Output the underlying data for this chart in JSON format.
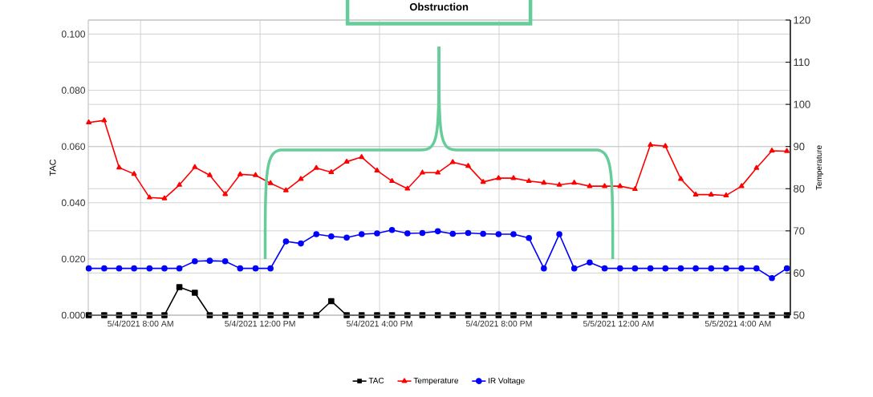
{
  "chart_data": {
    "type": "line",
    "x": [
      "2021-05-04T06:16",
      "2021-05-04T06:47",
      "2021-05-04T07:17",
      "2021-05-04T07:47",
      "2021-05-04T08:18",
      "2021-05-04T08:48",
      "2021-05-04T09:18",
      "2021-05-04T09:49",
      "2021-05-04T10:19",
      "2021-05-04T10:50",
      "2021-05-04T11:20",
      "2021-05-04T11:51",
      "2021-05-04T12:21",
      "2021-05-04T12:52",
      "2021-05-04T13:22",
      "2021-05-04T13:53",
      "2021-05-04T14:23",
      "2021-05-04T14:54",
      "2021-05-04T15:24",
      "2021-05-04T15:55",
      "2021-05-04T16:25",
      "2021-05-04T16:56",
      "2021-05-04T17:26",
      "2021-05-04T17:57",
      "2021-05-04T18:27",
      "2021-05-04T18:58",
      "2021-05-04T19:28",
      "2021-05-04T19:59",
      "2021-05-04T20:29",
      "2021-05-04T21:00",
      "2021-05-04T21:30",
      "2021-05-04T22:01",
      "2021-05-04T22:31",
      "2021-05-04T23:02",
      "2021-05-04T23:32",
      "2021-05-05T00:03",
      "2021-05-05T00:33",
      "2021-05-05T01:04",
      "2021-05-05T01:34",
      "2021-05-05T02:05",
      "2021-05-05T02:35",
      "2021-05-05T03:06",
      "2021-05-05T03:36",
      "2021-05-05T04:07",
      "2021-05-05T04:37",
      "2021-05-05T05:08",
      "2021-05-05T05:38"
    ],
    "series": [
      {
        "name": "TAC",
        "color": "#000000",
        "marker": "square",
        "values": [
          0,
          0,
          0,
          0,
          0,
          0,
          0.01,
          0.008,
          0,
          0,
          0,
          0,
          0,
          0,
          0,
          0,
          0.005,
          0,
          0,
          0,
          0,
          0,
          0,
          0,
          0,
          0,
          0,
          0,
          0,
          0,
          0,
          0,
          0,
          0,
          0,
          0,
          0,
          0,
          0,
          0,
          0,
          0,
          0,
          0,
          0,
          0,
          0
        ]
      },
      {
        "name": "Temperature",
        "color": "#ff0000",
        "marker": "triangle",
        "axis": "y2",
        "values": [
          95.7,
          96.2,
          85.0,
          83.5,
          77.9,
          77.7,
          80.9,
          85.1,
          83.2,
          78.7,
          83.4,
          83.2,
          81.3,
          79.6,
          82.3,
          84.9,
          83.9,
          86.4,
          87.5,
          84.3,
          81.8,
          80.0,
          83.8,
          83.8,
          86.3,
          85.4,
          81.6,
          82.5,
          82.5,
          81.8,
          81.4,
          80.9,
          81.4,
          80.6,
          80.6,
          80.6,
          79.9,
          90.4,
          90.1,
          82.3,
          78.6,
          78.6,
          78.4,
          80.6,
          84.9,
          89.0,
          88.9
        ]
      },
      {
        "name": "IR Voltage",
        "color": "#0000ff",
        "marker": "circle",
        "axis": "y2",
        "values": [
          61.1,
          61.1,
          61.1,
          61.1,
          61.1,
          61.1,
          61.1,
          62.8,
          62.9,
          62.8,
          61.1,
          61.1,
          61.1,
          67.5,
          67.0,
          69.2,
          68.7,
          68.4,
          69.2,
          69.4,
          70.2,
          69.4,
          69.5,
          69.9,
          69.3,
          69.5,
          69.3,
          69.2,
          69.2,
          68.3,
          61.1,
          69.2,
          61.1,
          62.5,
          61.1,
          61.1,
          61.1,
          61.1,
          61.1,
          61.1,
          61.1,
          61.1,
          61.1,
          61.1,
          61.1,
          58.8,
          61.1
        ]
      }
    ],
    "ylabel": "TAC",
    "y2label": "Temperature",
    "xlim": [
      "2021-05-04T06:15",
      "2021-05-05T05:45"
    ],
    "xticks": [
      {
        "value": "2021-05-04T08:00",
        "label": "5/4/2021 8:00 AM"
      },
      {
        "value": "2021-05-04T12:00",
        "label": "5/4/2021 12:00 PM"
      },
      {
        "value": "2021-05-04T16:00",
        "label": "5/4/2021 4:00 PM"
      },
      {
        "value": "2021-05-04T20:00",
        "label": "5/4/2021 8:00 PM"
      },
      {
        "value": "2021-05-05T00:00",
        "label": "5/5/2021 12:00 AM"
      },
      {
        "value": "2021-05-05T04:00",
        "label": "5/5/2021 4:00 AM"
      }
    ],
    "ylim": [
      0,
      0.105
    ],
    "yticks": [
      {
        "value": 0,
        "label": "0.000"
      },
      {
        "value": 0.02,
        "label": "0.020"
      },
      {
        "value": 0.04,
        "label": "0.040"
      },
      {
        "value": 0.06,
        "label": "0.060"
      },
      {
        "value": 0.08,
        "label": "0.080"
      },
      {
        "value": 0.1,
        "label": "0.100"
      }
    ],
    "y2lim": [
      50,
      120
    ],
    "y2ticks": [
      50,
      60,
      70,
      80,
      90,
      100,
      110,
      120
    ],
    "annotations": [
      "Obstruction"
    ],
    "grid": true,
    "legend": "bottom"
  }
}
